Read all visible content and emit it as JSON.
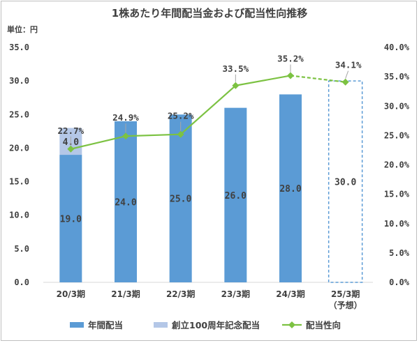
{
  "chart_data": {
    "type": "bar",
    "title": "1株あたり年間配当金および配当性向推移",
    "unit_label": "単位：円",
    "categories": [
      "20/3期",
      "21/3期",
      "22/3期",
      "23/3期",
      "24/3期",
      "25/3期"
    ],
    "category_sublabels": [
      "",
      "",
      "",
      "",
      "",
      "（予想）"
    ],
    "y_left": {
      "min": 0,
      "max": 35,
      "step": 5,
      "tick_labels": [
        "0.0",
        "5.0",
        "10.0",
        "15.0",
        "20.0",
        "25.0",
        "30.0",
        "35.0"
      ]
    },
    "y_right": {
      "min": 0,
      "max": 40,
      "step": 5,
      "tick_labels": [
        "0.0%",
        "5.0%",
        "10.0%",
        "15.0%",
        "20.0%",
        "25.0%",
        "30.0%",
        "35.0%",
        "40.0%"
      ]
    },
    "series": [
      {
        "name": "年間配当",
        "kind": "bar",
        "color": "#5b9bd5",
        "values": [
          19.0,
          24.0,
          25.0,
          26.0,
          28.0,
          30.0
        ],
        "labels": [
          "19.0",
          "24.0",
          "25.0",
          "26.0",
          "28.0",
          "30.0"
        ],
        "forecast_index": 5
      },
      {
        "name": "創立100周年記念配当",
        "kind": "bar-stacked",
        "color": "#b4c7e7",
        "values": [
          4.0,
          0,
          0,
          0,
          0,
          0
        ],
        "labels": [
          "4.0",
          "",
          "",
          "",
          "",
          ""
        ]
      },
      {
        "name": "配当性向",
        "kind": "line",
        "axis": "right",
        "color": "#7cc242",
        "values": [
          22.7,
          24.9,
          25.2,
          33.5,
          35.2,
          34.1
        ],
        "labels": [
          "22.7%",
          "24.9%",
          "25.2%",
          "33.5%",
          "35.2%",
          "34.1%"
        ],
        "forecast_index": 5
      }
    ],
    "legend_position": "bottom",
    "grid": false
  }
}
